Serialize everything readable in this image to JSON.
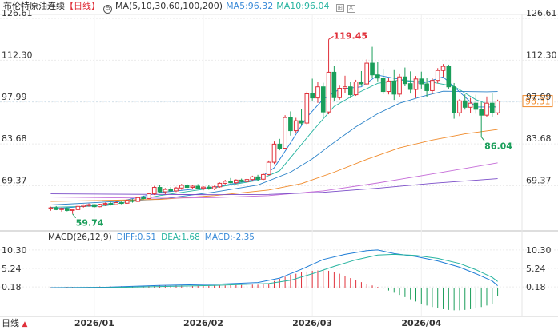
{
  "header": {
    "instrument": "布伦特原油连续",
    "period": "【日线】",
    "ma_label": "MA(5,10,30,60,100,200)",
    "ma5": "MA5:96.32",
    "ma10": "MA10:96.04",
    "icons": [
      "gear-icon",
      "settings-icon",
      "close-icon"
    ]
  },
  "macd_header": {
    "label": "MACD(26,12,9)",
    "diff": "DIFF:0.51",
    "dea": "DEA:1.68",
    "macd": "MACD:-2.35"
  },
  "timeframe": {
    "label": "日线",
    "arrow": "▲"
  },
  "colors": {
    "up": "#e0303a",
    "down": "#1a9e5a",
    "ma5": "#1f7dd6",
    "ma10": "#27b4a0",
    "ma30": "#2a82c8",
    "ma60": "#f08a2a",
    "ma100": "#c56cd8",
    "ma200": "#7a4cc8",
    "price_line": "#3a8fd0",
    "price_tag": "#f08a2a"
  },
  "chart_data": {
    "type": "candlestick",
    "title": "布伦特原油连续 日线",
    "y_ticks": [
      "126.61",
      "112.30",
      "97.99",
      "83.68",
      "69.37"
    ],
    "y_ticks_values": [
      126.61,
      112.3,
      97.99,
      83.68,
      69.37
    ],
    "ylim": [
      55.0,
      128.0
    ],
    "x_ticks": [
      "2026/01",
      "2026/02",
      "2026/03",
      "2026/04"
    ],
    "x_tick_index": [
      8,
      28,
      48,
      68
    ],
    "current_price": 98.31,
    "current_price_label": "98.31",
    "annotations": [
      {
        "label": "119.45",
        "value": 119.45,
        "index": 51,
        "kind": "high"
      },
      {
        "label": "59.74",
        "value": 59.74,
        "index": 4,
        "kind": "low"
      },
      {
        "label": "86.04",
        "value": 86.04,
        "index": 79,
        "kind": "low"
      }
    ],
    "candles": [
      [
        61.5,
        62.2,
        60.8,
        61.8
      ],
      [
        61.8,
        62.4,
        61.0,
        61.2
      ],
      [
        61.2,
        61.9,
        60.5,
        61.6
      ],
      [
        61.6,
        62.0,
        60.6,
        60.9
      ],
      [
        60.9,
        61.5,
        59.74,
        61.2
      ],
      [
        61.2,
        62.6,
        61.0,
        62.3
      ],
      [
        62.3,
        63.0,
        61.9,
        62.7
      ],
      [
        62.7,
        63.3,
        62.2,
        62.9
      ],
      [
        62.9,
        63.1,
        61.9,
        62.2
      ],
      [
        62.2,
        63.2,
        62.0,
        63.0
      ],
      [
        63.0,
        63.6,
        62.5,
        63.3
      ],
      [
        63.3,
        63.7,
        62.6,
        62.9
      ],
      [
        62.9,
        63.9,
        62.7,
        63.6
      ],
      [
        63.6,
        64.2,
        63.0,
        63.4
      ],
      [
        63.4,
        64.6,
        63.2,
        64.3
      ],
      [
        64.3,
        64.8,
        63.6,
        64.0
      ],
      [
        64.0,
        65.6,
        63.8,
        65.3
      ],
      [
        65.3,
        66.0,
        64.7,
        65.0
      ],
      [
        65.0,
        67.0,
        64.8,
        66.6
      ],
      [
        66.6,
        69.3,
        66.2,
        68.8
      ],
      [
        68.8,
        69.6,
        66.8,
        67.3
      ],
      [
        67.3,
        68.6,
        66.5,
        68.1
      ],
      [
        68.1,
        68.9,
        67.4,
        67.6
      ],
      [
        67.6,
        69.0,
        67.2,
        68.6
      ],
      [
        68.6,
        70.0,
        68.0,
        69.5
      ],
      [
        69.5,
        70.1,
        68.4,
        68.8
      ],
      [
        68.8,
        69.6,
        68.2,
        69.2
      ],
      [
        69.2,
        69.9,
        68.3,
        68.5
      ],
      [
        68.5,
        69.2,
        67.8,
        68.9
      ],
      [
        68.9,
        69.7,
        68.0,
        68.3
      ],
      [
        68.3,
        69.4,
        67.9,
        69.0
      ],
      [
        69.0,
        70.5,
        68.7,
        70.2
      ],
      [
        70.2,
        71.4,
        69.8,
        70.9
      ],
      [
        70.9,
        72.0,
        70.1,
        70.4
      ],
      [
        70.4,
        71.6,
        70.0,
        71.3
      ],
      [
        71.3,
        71.8,
        70.5,
        70.8
      ],
      [
        70.8,
        71.9,
        70.4,
        71.5
      ],
      [
        71.5,
        72.8,
        71.1,
        72.4
      ],
      [
        72.4,
        73.1,
        71.2,
        71.6
      ],
      [
        71.6,
        73.6,
        71.3,
        73.2
      ],
      [
        73.2,
        78.0,
        73.0,
        77.4
      ],
      [
        77.4,
        84.5,
        76.8,
        83.6
      ],
      [
        83.6,
        85.4,
        81.5,
        82.2
      ],
      [
        82.2,
        93.5,
        81.8,
        92.7
      ],
      [
        92.7,
        94.8,
        86.5,
        88.2
      ],
      [
        88.2,
        92.6,
        87.3,
        91.6
      ],
      [
        91.6,
        95.5,
        90.2,
        90.8
      ],
      [
        90.8,
        101.6,
        90.3,
        100.8
      ],
      [
        100.8,
        106.0,
        98.5,
        99.4
      ],
      [
        99.4,
        104.8,
        97.7,
        103.2
      ],
      [
        103.2,
        104.6,
        93.0,
        94.6
      ],
      [
        94.6,
        119.45,
        93.8,
        108.2
      ],
      [
        108.2,
        110.5,
        98.2,
        99.5
      ],
      [
        99.5,
        103.6,
        98.8,
        102.7
      ],
      [
        102.7,
        107.0,
        101.0,
        103.2
      ],
      [
        103.2,
        104.8,
        99.3,
        100.5
      ],
      [
        100.5,
        105.6,
        100.1,
        104.9
      ],
      [
        104.9,
        108.6,
        103.5,
        104.2
      ],
      [
        104.2,
        112.6,
        103.8,
        111.3
      ],
      [
        111.3,
        116.9,
        106.2,
        107.3
      ],
      [
        107.3,
        111.8,
        105.1,
        106.2
      ],
      [
        106.2,
        109.4,
        100.7,
        101.6
      ],
      [
        101.6,
        106.3,
        100.6,
        105.2
      ],
      [
        105.2,
        109.2,
        98.7,
        100.7
      ],
      [
        100.7,
        107.8,
        99.8,
        106.6
      ],
      [
        106.6,
        109.8,
        103.4,
        104.3
      ],
      [
        104.3,
        108.5,
        100.9,
        102.3
      ],
      [
        102.3,
        106.9,
        99.4,
        105.9
      ],
      [
        105.9,
        108.4,
        102.6,
        104.2
      ],
      [
        104.2,
        106.4,
        99.6,
        101.9
      ],
      [
        101.9,
        106.3,
        100.7,
        105.4
      ],
      [
        105.4,
        109.6,
        104.4,
        108.8
      ],
      [
        108.8,
        111.0,
        106.6,
        110.2
      ],
      [
        110.2,
        110.8,
        102.4,
        103.2
      ],
      [
        103.2,
        104.5,
        92.3,
        94.3
      ],
      [
        94.3,
        99.0,
        93.2,
        98.4
      ],
      [
        98.4,
        100.6,
        95.4,
        96.2
      ],
      [
        96.2,
        99.4,
        94.1,
        97.6
      ],
      [
        97.6,
        100.5,
        94.0,
        95.5
      ],
      [
        95.5,
        97.9,
        86.04,
        93.5
      ],
      [
        93.5,
        99.9,
        92.9,
        97.6
      ],
      [
        97.6,
        101.1,
        93.0,
        94.3
      ],
      [
        94.3,
        98.8,
        93.6,
        98.31
      ]
    ],
    "series": [
      {
        "name": "MA5",
        "values": [
          [
            0,
            61.4
          ],
          [
            10,
            62.9
          ],
          [
            20,
            67.0
          ],
          [
            30,
            68.9
          ],
          [
            38,
            71.6
          ],
          [
            41,
            75.5
          ],
          [
            44,
            84.0
          ],
          [
            47,
            92.8
          ],
          [
            50,
            99.0
          ],
          [
            53,
            102.4
          ],
          [
            57,
            103.2
          ],
          [
            60,
            107.2
          ],
          [
            64,
            105.8
          ],
          [
            68,
            104.3
          ],
          [
            72,
            106.6
          ],
          [
            75,
            101.5
          ],
          [
            78,
            96.3
          ],
          [
            82,
            96.32
          ]
        ]
      },
      {
        "name": "MA10",
        "values": [
          [
            0,
            62.0
          ],
          [
            10,
            62.5
          ],
          [
            20,
            66.0
          ],
          [
            30,
            68.7
          ],
          [
            38,
            71.2
          ],
          [
            42,
            74.5
          ],
          [
            45,
            81.2
          ],
          [
            48,
            88.0
          ],
          [
            52,
            96.5
          ],
          [
            56,
            100.8
          ],
          [
            60,
            104.4
          ],
          [
            64,
            105.5
          ],
          [
            70,
            104.8
          ],
          [
            74,
            103.4
          ],
          [
            78,
            98.8
          ],
          [
            82,
            96.04
          ]
        ]
      },
      {
        "name": "MA30",
        "values": [
          [
            0,
            62.8
          ],
          [
            20,
            64.8
          ],
          [
            30,
            67.2
          ],
          [
            38,
            69.6
          ],
          [
            44,
            74.0
          ],
          [
            48,
            78.6
          ],
          [
            52,
            84.2
          ],
          [
            56,
            89.5
          ],
          [
            60,
            94.0
          ],
          [
            64,
            97.6
          ],
          [
            68,
            99.8
          ],
          [
            72,
            101.7
          ],
          [
            76,
            101.6
          ],
          [
            80,
            101.5
          ],
          [
            82,
            101.6
          ]
        ]
      },
      {
        "name": "MA60",
        "values": [
          [
            0,
            64.0
          ],
          [
            20,
            64.7
          ],
          [
            30,
            66.0
          ],
          [
            40,
            67.9
          ],
          [
            46,
            70.1
          ],
          [
            52,
            74.0
          ],
          [
            58,
            78.4
          ],
          [
            64,
            82.3
          ],
          [
            70,
            85.0
          ],
          [
            76,
            87.1
          ],
          [
            82,
            88.6
          ]
        ]
      },
      {
        "name": "MA100",
        "values": [
          [
            0,
            65.5
          ],
          [
            20,
            65.1
          ],
          [
            30,
            65.3
          ],
          [
            40,
            66.0
          ],
          [
            50,
            67.6
          ],
          [
            60,
            70.3
          ],
          [
            70,
            73.4
          ],
          [
            76,
            75.3
          ],
          [
            82,
            77.2
          ]
        ]
      },
      {
        "name": "MA200",
        "values": [
          [
            0,
            66.6
          ],
          [
            30,
            66.3
          ],
          [
            40,
            66.4
          ],
          [
            50,
            67.1
          ],
          [
            60,
            68.5
          ],
          [
            70,
            70.2
          ],
          [
            82,
            71.8
          ]
        ]
      }
    ],
    "macd": {
      "y_ticks": [
        "10.30",
        "5.24",
        "0.18"
      ],
      "y_ticks_values": [
        10.3,
        5.24,
        0.18
      ],
      "ylim": [
        -7.0,
        11.8
      ],
      "diff": [
        [
          0,
          0.0
        ],
        [
          10,
          0.1
        ],
        [
          20,
          0.6
        ],
        [
          30,
          0.9
        ],
        [
          38,
          1.4
        ],
        [
          42,
          2.6
        ],
        [
          46,
          5.0
        ],
        [
          50,
          7.7
        ],
        [
          54,
          9.1
        ],
        [
          58,
          10.1
        ],
        [
          60,
          10.3
        ],
        [
          63,
          9.3
        ],
        [
          67,
          8.5
        ],
        [
          71,
          7.3
        ],
        [
          75,
          5.6
        ],
        [
          78,
          3.8
        ],
        [
          81,
          1.8
        ],
        [
          82,
          0.51
        ]
      ],
      "dea": [
        [
          0,
          -0.1
        ],
        [
          10,
          0.0
        ],
        [
          20,
          0.3
        ],
        [
          30,
          0.6
        ],
        [
          40,
          1.1
        ],
        [
          44,
          2.0
        ],
        [
          48,
          3.8
        ],
        [
          52,
          5.8
        ],
        [
          56,
          7.6
        ],
        [
          60,
          8.9
        ],
        [
          63,
          9.1
        ],
        [
          67,
          8.8
        ],
        [
          71,
          8.0
        ],
        [
          75,
          6.6
        ],
        [
          78,
          4.9
        ],
        [
          81,
          2.8
        ],
        [
          82,
          1.68
        ]
      ],
      "hist": [
        0.1,
        0.1,
        0.1,
        0.2,
        0.2,
        0.2,
        0.1,
        0.2,
        0.2,
        0.3,
        0.2,
        0.3,
        0.3,
        0.4,
        0.3,
        0.4,
        0.4,
        0.5,
        0.5,
        0.6,
        0.6,
        0.6,
        0.5,
        0.6,
        0.6,
        0.5,
        0.5,
        0.6,
        0.5,
        0.5,
        0.6,
        0.6,
        0.6,
        0.7,
        0.7,
        0.7,
        0.8,
        0.8,
        0.8,
        0.9,
        1.2,
        1.8,
        2.4,
        3.0,
        3.5,
        3.8,
        4.2,
        4.4,
        4.6,
        4.7,
        4.7,
        4.6,
        4.2,
        3.8,
        3.2,
        2.6,
        2.0,
        1.5,
        1.0,
        0.6,
        0.2,
        -0.3,
        -0.8,
        -1.4,
        -2.0,
        -2.6,
        -3.2,
        -3.8,
        -4.4,
        -4.9,
        -5.3,
        -5.6,
        -5.9,
        -6.1,
        -6.2,
        -6.2,
        -6.1,
        -5.9,
        -5.6,
        -5.3,
        -4.9,
        -4.4,
        -2.35
      ]
    }
  }
}
